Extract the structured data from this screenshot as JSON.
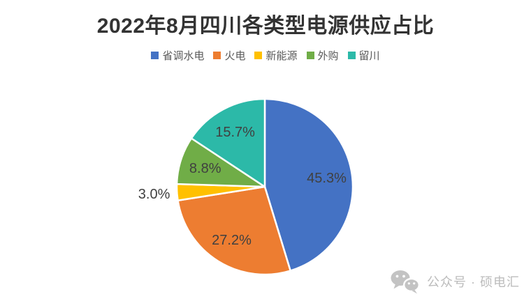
{
  "title": "2022年8月四川各类型电源供应占比",
  "chart_data": {
    "type": "pie",
    "title": "2022年8月四川各类型电源供应占比",
    "categories": [
      "省调水电",
      "火电",
      "新能源",
      "外购",
      "留川"
    ],
    "values": [
      45.3,
      27.2,
      3.0,
      8.8,
      15.7
    ],
    "display_labels": [
      "45.3%",
      "27.2%",
      "3.0%",
      "8.8%",
      "15.7%"
    ],
    "colors": [
      "#4472C4",
      "#ED7D31",
      "#FFC000",
      "#70AD47",
      "#2CB9A8"
    ],
    "legend_position": "top",
    "start_angle_deg": 0,
    "direction": "clockwise",
    "label_color": "#404040",
    "slice_border_color": "#ffffff"
  },
  "watermark": {
    "icon": "wechat-icon",
    "text": "公众号 · 硕电汇",
    "color": "#c3c3c3"
  }
}
